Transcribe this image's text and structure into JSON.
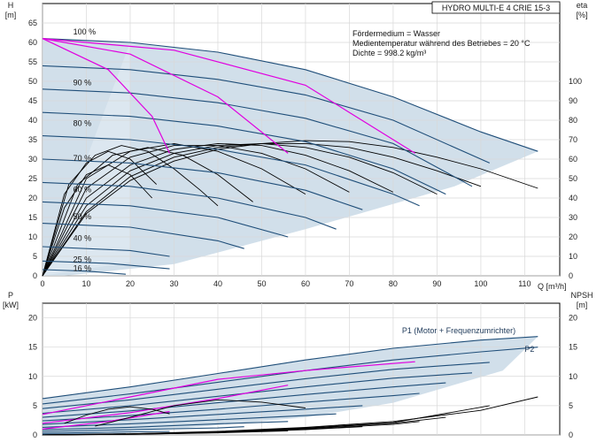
{
  "title": "HYDRO MULTI-E 4 CRIE 15-3",
  "notes": [
    "Fördermedium = Wasser",
    "Medientemperatur während des Betriebes = 20 °C",
    "Dichte = 998.2 kg/m³"
  ],
  "colors": {
    "envelope": "#c9d9e6",
    "envelope_light": "#dde8f1",
    "head_curve": "#1f4e79",
    "efficiency_curve": "#000000",
    "mark_curve": "#e000e0",
    "frame": "#000000"
  },
  "chart_data": [
    {
      "type": "line",
      "name": "head",
      "xlabel": "Q [m³/h]",
      "ylabel_top": "H",
      "ylabel_unit": "[m]",
      "y2label_top": "eta",
      "y2label_unit": "[%]",
      "xlim": [
        0,
        118
      ],
      "ylim": [
        0,
        70
      ],
      "y2lim": [
        0,
        100
      ],
      "x_ticks": [
        0,
        10,
        20,
        30,
        40,
        50,
        60,
        70,
        80,
        90,
        100,
        110
      ],
      "y_ticks": [
        0,
        5,
        10,
        15,
        20,
        25,
        30,
        35,
        40,
        45,
        50,
        55,
        60,
        65
      ],
      "y2_ticks": [
        0,
        10,
        20,
        30,
        40,
        50,
        60,
        70,
        80,
        90,
        100
      ],
      "grid": true,
      "speed_labels": [
        {
          "text": "100 %",
          "x": 7,
          "y": 62
        },
        {
          "text": "90 %",
          "x": 7,
          "y": 49
        },
        {
          "text": "80 %",
          "x": 7,
          "y": 38.5
        },
        {
          "text": "70 %",
          "x": 7,
          "y": 29.5
        },
        {
          "text": "60 %",
          "x": 7,
          "y": 21.5
        },
        {
          "text": "50 %",
          "x": 7,
          "y": 14.5
        },
        {
          "text": "40 %",
          "x": 7,
          "y": 9
        },
        {
          "text": "25 %",
          "x": 7,
          "y": 3.5
        },
        {
          "text": "16 %",
          "x": 7,
          "y": 1.2
        }
      ],
      "series": [
        {
          "speed": 100,
          "x": [
            0,
            20,
            40,
            60,
            80,
            100,
            113
          ],
          "y": [
            61,
            60,
            57.5,
            53,
            46,
            37,
            32
          ]
        },
        {
          "speed": 94,
          "x": [
            0,
            20,
            40,
            60,
            80,
            102
          ],
          "y": [
            54,
            53,
            50.5,
            46.5,
            40,
            29
          ]
        },
        {
          "speed": 88,
          "x": [
            0,
            20,
            40,
            60,
            80,
            98
          ],
          "y": [
            48,
            47,
            44.5,
            40.5,
            34,
            23
          ]
        },
        {
          "speed": 82,
          "x": [
            0,
            20,
            40,
            60,
            80,
            92
          ],
          "y": [
            42,
            41,
            38.5,
            34.5,
            27.5,
            21
          ]
        },
        {
          "speed": 76,
          "x": [
            0,
            20,
            40,
            60,
            80,
            86
          ],
          "y": [
            36,
            35,
            32.5,
            28.5,
            21,
            18
          ]
        },
        {
          "speed": 70,
          "x": [
            0,
            20,
            40,
            60,
            73
          ],
          "y": [
            30,
            29,
            26.5,
            22,
            17
          ]
        },
        {
          "speed": 62,
          "x": [
            0,
            20,
            40,
            60,
            67
          ],
          "y": [
            24,
            23,
            20,
            15,
            12
          ]
        },
        {
          "speed": 55,
          "x": [
            0,
            20,
            40,
            56
          ],
          "y": [
            19,
            18,
            15,
            10
          ]
        },
        {
          "speed": 48,
          "x": [
            0,
            20,
            40,
            46
          ],
          "y": [
            13.5,
            12.5,
            9,
            7
          ]
        },
        {
          "speed": 36,
          "x": [
            0,
            20,
            29
          ],
          "y": [
            7.5,
            6.5,
            5
          ]
        },
        {
          "speed": 25,
          "x": [
            0,
            15,
            29
          ],
          "y": [
            3.8,
            3.2,
            1.8
          ]
        },
        {
          "speed": 16,
          "x": [
            0,
            10,
            19
          ],
          "y": [
            1.6,
            1.2,
            0.4
          ]
        }
      ],
      "mark_curves": [
        {
          "x": [
            0,
            15,
            25,
            29
          ],
          "y": [
            61,
            53,
            41,
            31.5
          ]
        },
        {
          "x": [
            0,
            20,
            40,
            56
          ],
          "y": [
            61,
            57,
            46,
            31.5
          ]
        },
        {
          "x": [
            0,
            30,
            60,
            85
          ],
          "y": [
            61,
            58,
            49,
            31.5
          ]
        }
      ],
      "envelope": {
        "x": [
          0,
          20,
          40,
          60,
          80,
          100,
          113,
          94,
          60,
          30,
          5,
          0
        ],
        "y": [
          61,
          60,
          57.5,
          53,
          46,
          37,
          32,
          23,
          12,
          3,
          0,
          0
        ]
      },
      "efficiency_curves": [
        {
          "x": [
            0,
            10,
            20,
            30,
            40,
            50,
            60,
            70,
            80,
            90,
            100,
            113
          ],
          "eta": [
            0,
            32,
            49,
            59,
            65,
            68,
            69.5,
            69,
            66,
            61,
            55,
            45
          ]
        },
        {
          "x": [
            0,
            10,
            20,
            30,
            40,
            50,
            60,
            70,
            80,
            90,
            100
          ],
          "eta": [
            0,
            33,
            51,
            61,
            66,
            68,
            68,
            66,
            61,
            54,
            46
          ]
        },
        {
          "x": [
            0,
            10,
            20,
            30,
            40,
            50,
            60,
            70,
            80,
            90
          ],
          "eta": [
            0,
            36,
            54,
            63,
            67,
            68,
            66,
            61,
            53,
            42
          ]
        },
        {
          "x": [
            0,
            10,
            20,
            30,
            40,
            50,
            60,
            70,
            80
          ],
          "eta": [
            0,
            40,
            57,
            65,
            68,
            67,
            62,
            54,
            43
          ]
        },
        {
          "x": [
            0,
            10,
            20,
            30,
            40,
            50,
            60,
            70
          ],
          "eta": [
            0,
            45,
            61,
            67,
            67,
            63,
            55,
            43
          ]
        },
        {
          "x": [
            0,
            10,
            20,
            30,
            40,
            50,
            60
          ],
          "eta": [
            0,
            50,
            64,
            68,
            64,
            55,
            42
          ]
        },
        {
          "x": [
            0,
            8,
            16,
            24,
            32,
            40,
            48
          ],
          "eta": [
            0,
            47,
            62,
            66,
            62,
            52,
            38
          ]
        },
        {
          "x": [
            0,
            5,
            10,
            15,
            20,
            25
          ],
          "eta": [
            0,
            35,
            52,
            57,
            52,
            40
          ]
        },
        {
          "x": [
            0,
            5,
            10,
            15,
            20,
            26
          ],
          "eta": [
            0,
            42,
            58,
            64,
            60,
            47
          ]
        },
        {
          "x": [
            0,
            6,
            12,
            18,
            24,
            30,
            36,
            40
          ],
          "eta": [
            0,
            47,
            62,
            67,
            64,
            55,
            44,
            36
          ]
        }
      ]
    },
    {
      "type": "line",
      "name": "power",
      "xlabel": "",
      "ylabel_top": "P",
      "ylabel_unit": "[kW]",
      "y2label_top": "NPSH",
      "y2label_unit": "[m]",
      "xlim": [
        0,
        118
      ],
      "ylim": [
        0,
        22.5
      ],
      "x_ticks": [
        0,
        10,
        20,
        30,
        40,
        50,
        60,
        70,
        80,
        90,
        100,
        110
      ],
      "y_ticks": [
        0,
        5,
        10,
        15,
        20
      ],
      "y2_ticks": [
        0,
        5,
        10,
        15,
        20
      ],
      "grid": true,
      "labels": [
        {
          "text": "P1 (Motor + Frequenzumrichter)",
          "x": 82,
          "y": 17.4
        },
        {
          "text": "P2",
          "x": 110,
          "y": 14.2
        }
      ],
      "series": [
        {
          "name": "P1",
          "x": [
            0,
            20,
            40,
            60,
            80,
            100,
            113
          ],
          "y": [
            6.2,
            8.2,
            10.5,
            12.8,
            14.8,
            16.2,
            16.8
          ]
        },
        {
          "name": "P2",
          "x": [
            0,
            20,
            40,
            60,
            80,
            100,
            113
          ],
          "y": [
            5.3,
            7.0,
            9.0,
            11.0,
            12.8,
            14.2,
            15.0
          ]
        },
        {
          "x": [
            0,
            20,
            40,
            60,
            80,
            102
          ],
          "y": [
            4.5,
            6.0,
            7.8,
            9.6,
            11.2,
            12.4
          ]
        },
        {
          "x": [
            0,
            20,
            40,
            60,
            80,
            98
          ],
          "y": [
            3.7,
            5.0,
            6.6,
            8.2,
            9.7,
            10.6
          ]
        },
        {
          "x": [
            0,
            20,
            40,
            60,
            80,
            92
          ],
          "y": [
            3.0,
            4.1,
            5.5,
            6.9,
            8.2,
            8.9
          ]
        },
        {
          "x": [
            0,
            20,
            40,
            60,
            80,
            86
          ],
          "y": [
            2.4,
            3.3,
            4.4,
            5.6,
            6.7,
            7.1
          ]
        },
        {
          "x": [
            0,
            20,
            40,
            60,
            73
          ],
          "y": [
            1.8,
            2.6,
            3.5,
            4.4,
            5.0
          ]
        },
        {
          "x": [
            0,
            20,
            40,
            60,
            67
          ],
          "y": [
            1.3,
            1.9,
            2.6,
            3.3,
            3.6
          ]
        },
        {
          "x": [
            0,
            20,
            40,
            56
          ],
          "y": [
            0.9,
            1.3,
            1.9,
            2.3
          ]
        },
        {
          "x": [
            0,
            20,
            40,
            46
          ],
          "y": [
            0.6,
            0.9,
            1.2,
            1.4
          ]
        },
        {
          "x": [
            0,
            15,
            29
          ],
          "y": [
            0.3,
            0.45,
            0.6
          ]
        },
        {
          "x": [
            0,
            10,
            19
          ],
          "y": [
            0.1,
            0.15,
            0.2
          ]
        }
      ],
      "mark_curves": [
        {
          "x": [
            0,
            20,
            40,
            60,
            85
          ],
          "y": [
            3.5,
            6.5,
            9.5,
            11.0,
            12.5
          ]
        },
        {
          "x": [
            0,
            20,
            40,
            56
          ],
          "y": [
            2.0,
            3.8,
            6.2,
            8.5
          ]
        },
        {
          "x": [
            0,
            15,
            29
          ],
          "y": [
            1.0,
            2.3,
            4.0
          ]
        }
      ],
      "envelope": {
        "x": [
          0,
          20,
          40,
          60,
          80,
          100,
          113,
          105,
          80,
          60,
          30,
          5,
          0
        ],
        "y": [
          6.2,
          8.2,
          10.5,
          12.8,
          14.8,
          16.2,
          16.8,
          11.0,
          5.5,
          3.0,
          1.0,
          0,
          0
        ]
      },
      "npsh_curves": [
        {
          "x": [
            0,
            20,
            40,
            60,
            80,
            100,
            113
          ],
          "y": [
            0,
            0.2,
            0.6,
            1.3,
            2.3,
            4.2,
            6.5
          ]
        },
        {
          "x": [
            0,
            20,
            40,
            60,
            80,
            102
          ],
          "y": [
            0,
            0.2,
            0.55,
            1.2,
            2.1,
            5.0
          ]
        },
        {
          "x": [
            0,
            20,
            40,
            60,
            80,
            92
          ],
          "y": [
            0,
            0.15,
            0.5,
            1.1,
            2.0,
            3.0
          ]
        },
        {
          "x": [
            0,
            20,
            40,
            60,
            80,
            86
          ],
          "y": [
            0,
            0.15,
            0.45,
            1.0,
            1.8,
            2.3
          ]
        },
        {
          "x": [
            0,
            20,
            40,
            60,
            73
          ],
          "y": [
            0,
            0.1,
            0.4,
            0.9,
            1.4
          ]
        },
        {
          "x": [
            0,
            20,
            40,
            56
          ],
          "y": [
            0,
            0.1,
            0.35,
            0.7
          ]
        },
        {
          "x": [
            0,
            15,
            29
          ],
          "y": [
            0,
            0.1,
            0.25
          ]
        }
      ],
      "extra_curves": [
        {
          "x": [
            5,
            10,
            15,
            20,
            25,
            29
          ],
          "y": [
            2.0,
            3.4,
            4.4,
            4.8,
            4.4,
            3.6
          ]
        },
        {
          "x": [
            12,
            20,
            30,
            40,
            50,
            60
          ],
          "y": [
            1.5,
            3.0,
            5.0,
            6.0,
            5.6,
            4.6
          ]
        }
      ]
    }
  ]
}
